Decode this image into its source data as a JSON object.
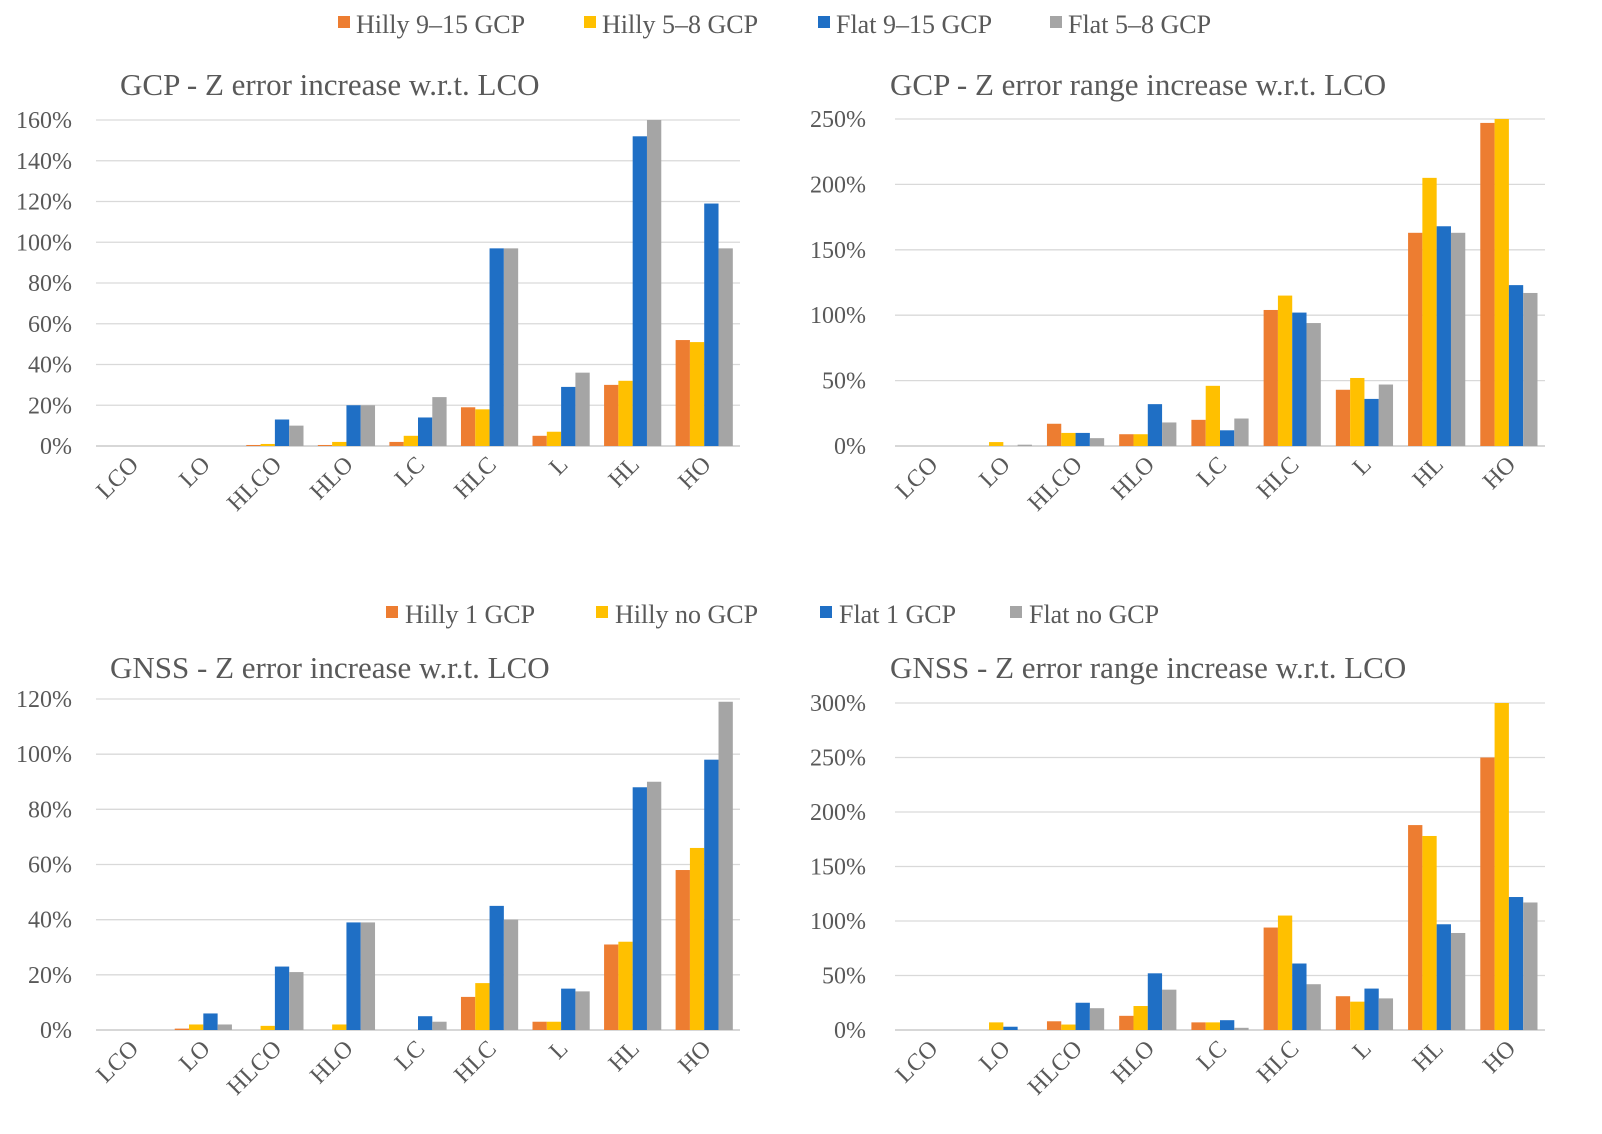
{
  "legend_top": [
    {
      "name": "Hilly 9–15 GCP",
      "color": "#ED7D31"
    },
    {
      "name": "Hilly 5–8 GCP",
      "color": "#FFC000"
    },
    {
      "name": "Flat 9–15 GCP",
      "color": "#1F6FC5"
    },
    {
      "name": "Flat 5–8 GCP",
      "color": "#A5A5A5"
    }
  ],
  "legend_bottom": [
    {
      "name": "Hilly 1 GCP",
      "color": "#ED7D31"
    },
    {
      "name": "Hilly no GCP",
      "color": "#FFC000"
    },
    {
      "name": "Flat 1 GCP",
      "color": "#1F6FC5"
    },
    {
      "name": "Flat no GCP",
      "color": "#A5A5A5"
    }
  ],
  "chart_data": [
    {
      "type": "bar",
      "title": "GCP -  Z error increase w.r.t. LCO",
      "categories": [
        "LCO",
        "LO",
        "HLCO",
        "HLO",
        "LC",
        "HLC",
        "L",
        "HL",
        "HO"
      ],
      "ylim": [
        0,
        160
      ],
      "yticks": [
        0,
        20,
        40,
        60,
        80,
        100,
        120,
        140,
        160
      ],
      "ytick_labels": [
        "0%",
        "20%",
        "40%",
        "60%",
        "80%",
        "100%",
        "120%",
        "140%",
        "160%"
      ],
      "series": [
        {
          "name": "Hilly 9–15 GCP",
          "values": [
            0,
            0,
            0.5,
            0.5,
            2,
            19,
            5,
            30,
            52
          ]
        },
        {
          "name": "Hilly 5–8 GCP",
          "values": [
            0,
            0,
            1,
            2,
            5,
            18,
            7,
            32,
            51
          ]
        },
        {
          "name": "Flat 9–15 GCP",
          "values": [
            0,
            0,
            13,
            20,
            14,
            97,
            29,
            152,
            119
          ]
        },
        {
          "name": "Flat 5–8 GCP",
          "values": [
            0,
            0,
            10,
            20,
            24,
            97,
            36,
            160,
            97
          ]
        }
      ]
    },
    {
      "type": "bar",
      "title": "GCP -  Z error range increase w.r.t. LCO",
      "categories": [
        "LCO",
        "LO",
        "HLCO",
        "HLO",
        "LC",
        "HLC",
        "L",
        "HL",
        "HO"
      ],
      "ylim": [
        0,
        250
      ],
      "yticks": [
        0,
        50,
        100,
        150,
        200,
        250
      ],
      "ytick_labels": [
        "0%",
        "50%",
        "100%",
        "150%",
        "200%",
        "250%"
      ],
      "series": [
        {
          "name": "Hilly 9–15 GCP",
          "values": [
            0,
            0,
            17,
            9,
            20,
            104,
            43,
            163,
            247
          ]
        },
        {
          "name": "Hilly 5–8 GCP",
          "values": [
            0,
            3,
            10,
            9,
            46,
            115,
            52,
            205,
            250
          ]
        },
        {
          "name": "Flat 9–15 GCP",
          "values": [
            0,
            0,
            10,
            32,
            12,
            102,
            36,
            168,
            123
          ]
        },
        {
          "name": "Flat 5–8 GCP",
          "values": [
            0,
            1,
            6,
            18,
            21,
            94,
            47,
            163,
            117
          ]
        }
      ]
    },
    {
      "type": "bar",
      "title": "GNSS -  Z error increase w.r.t. LCO",
      "categories": [
        "LCO",
        "LO",
        "HLCO",
        "HLO",
        "LC",
        "HLC",
        "L",
        "HL",
        "HO"
      ],
      "ylim": [
        0,
        120
      ],
      "yticks": [
        0,
        20,
        40,
        60,
        80,
        100,
        120
      ],
      "ytick_labels": [
        "0%",
        "20%",
        "40%",
        "60%",
        "80%",
        "100%",
        "120%"
      ],
      "series": [
        {
          "name": "Hilly 1 GCP",
          "values": [
            0,
            0.5,
            0,
            0,
            0,
            12,
            3,
            31,
            58
          ]
        },
        {
          "name": "Hilly no GCP",
          "values": [
            0,
            2,
            1.5,
            2,
            0,
            17,
            3,
            32,
            66
          ]
        },
        {
          "name": "Flat 1 GCP",
          "values": [
            0,
            6,
            23,
            39,
            5,
            45,
            15,
            88,
            98
          ]
        },
        {
          "name": "Flat no GCP",
          "values": [
            0,
            2,
            21,
            39,
            3,
            40,
            14,
            90,
            119
          ]
        }
      ]
    },
    {
      "type": "bar",
      "title": "GNSS -  Z error range increase w.r.t. LCO",
      "categories": [
        "LCO",
        "LO",
        "HLCO",
        "HLO",
        "LC",
        "HLC",
        "L",
        "HL",
        "HO"
      ],
      "ylim": [
        0,
        300
      ],
      "yticks": [
        0,
        50,
        100,
        150,
        200,
        250,
        300
      ],
      "ytick_labels": [
        "0%",
        "50%",
        "100%",
        "150%",
        "200%",
        "250%",
        "300%"
      ],
      "series": [
        {
          "name": "Hilly 1 GCP",
          "values": [
            0,
            0,
            8,
            13,
            7,
            94,
            31,
            188,
            250
          ]
        },
        {
          "name": "Hilly no GCP",
          "values": [
            0,
            7,
            5,
            22,
            7,
            105,
            26,
            178,
            300
          ]
        },
        {
          "name": "Flat 1 GCP",
          "values": [
            0,
            3,
            25,
            52,
            9,
            61,
            38,
            97,
            122
          ]
        },
        {
          "name": "Flat no GCP",
          "values": [
            0,
            0,
            20,
            37,
            2,
            42,
            29,
            89,
            117
          ]
        }
      ]
    }
  ]
}
